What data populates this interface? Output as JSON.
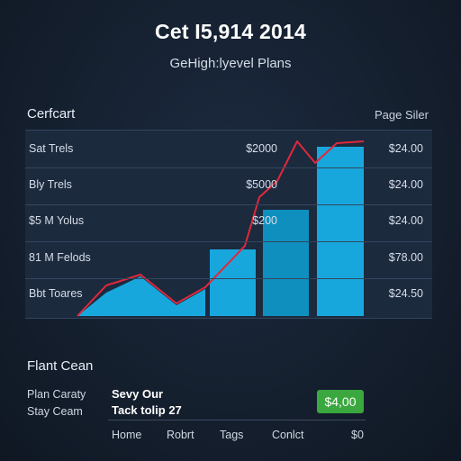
{
  "header": {
    "title": "Cet I5,914 2014",
    "subtitle": "GeHigh:lyevel Plans"
  },
  "panel": {
    "title": "Cerfcart",
    "filter_label": "Page Siler"
  },
  "table": {
    "rows": [
      {
        "label": "Sat Trels",
        "mid": "$2000",
        "right": "$24.00"
      },
      {
        "label": "Bly Trels",
        "mid": "$5000",
        "right": "$24.00"
      },
      {
        "label": "$5 M Yolus",
        "mid": "$200",
        "right": "$24.00"
      },
      {
        "label": "81 M Felods",
        "mid": "",
        "right": "$78.00"
      },
      {
        "label": "Bbt Toares",
        "mid": "",
        "right": "$24.50"
      }
    ]
  },
  "colors": {
    "bar": "#18a7dc",
    "bar_dark": "#0f8fbe",
    "line": "#e0283c",
    "button": "#3aa83e"
  },
  "details": {
    "title": "Flant Cean",
    "rows": [
      {
        "label": "Plan Caraty",
        "value": "Sevy Our"
      },
      {
        "label": "Stay Ceam",
        "value": "Tack tolip 27"
      }
    ],
    "price_button": "$4,00"
  },
  "nav": {
    "items": [
      "Home",
      "Robrt",
      "Tags",
      "Conlct",
      "$0"
    ]
  }
}
